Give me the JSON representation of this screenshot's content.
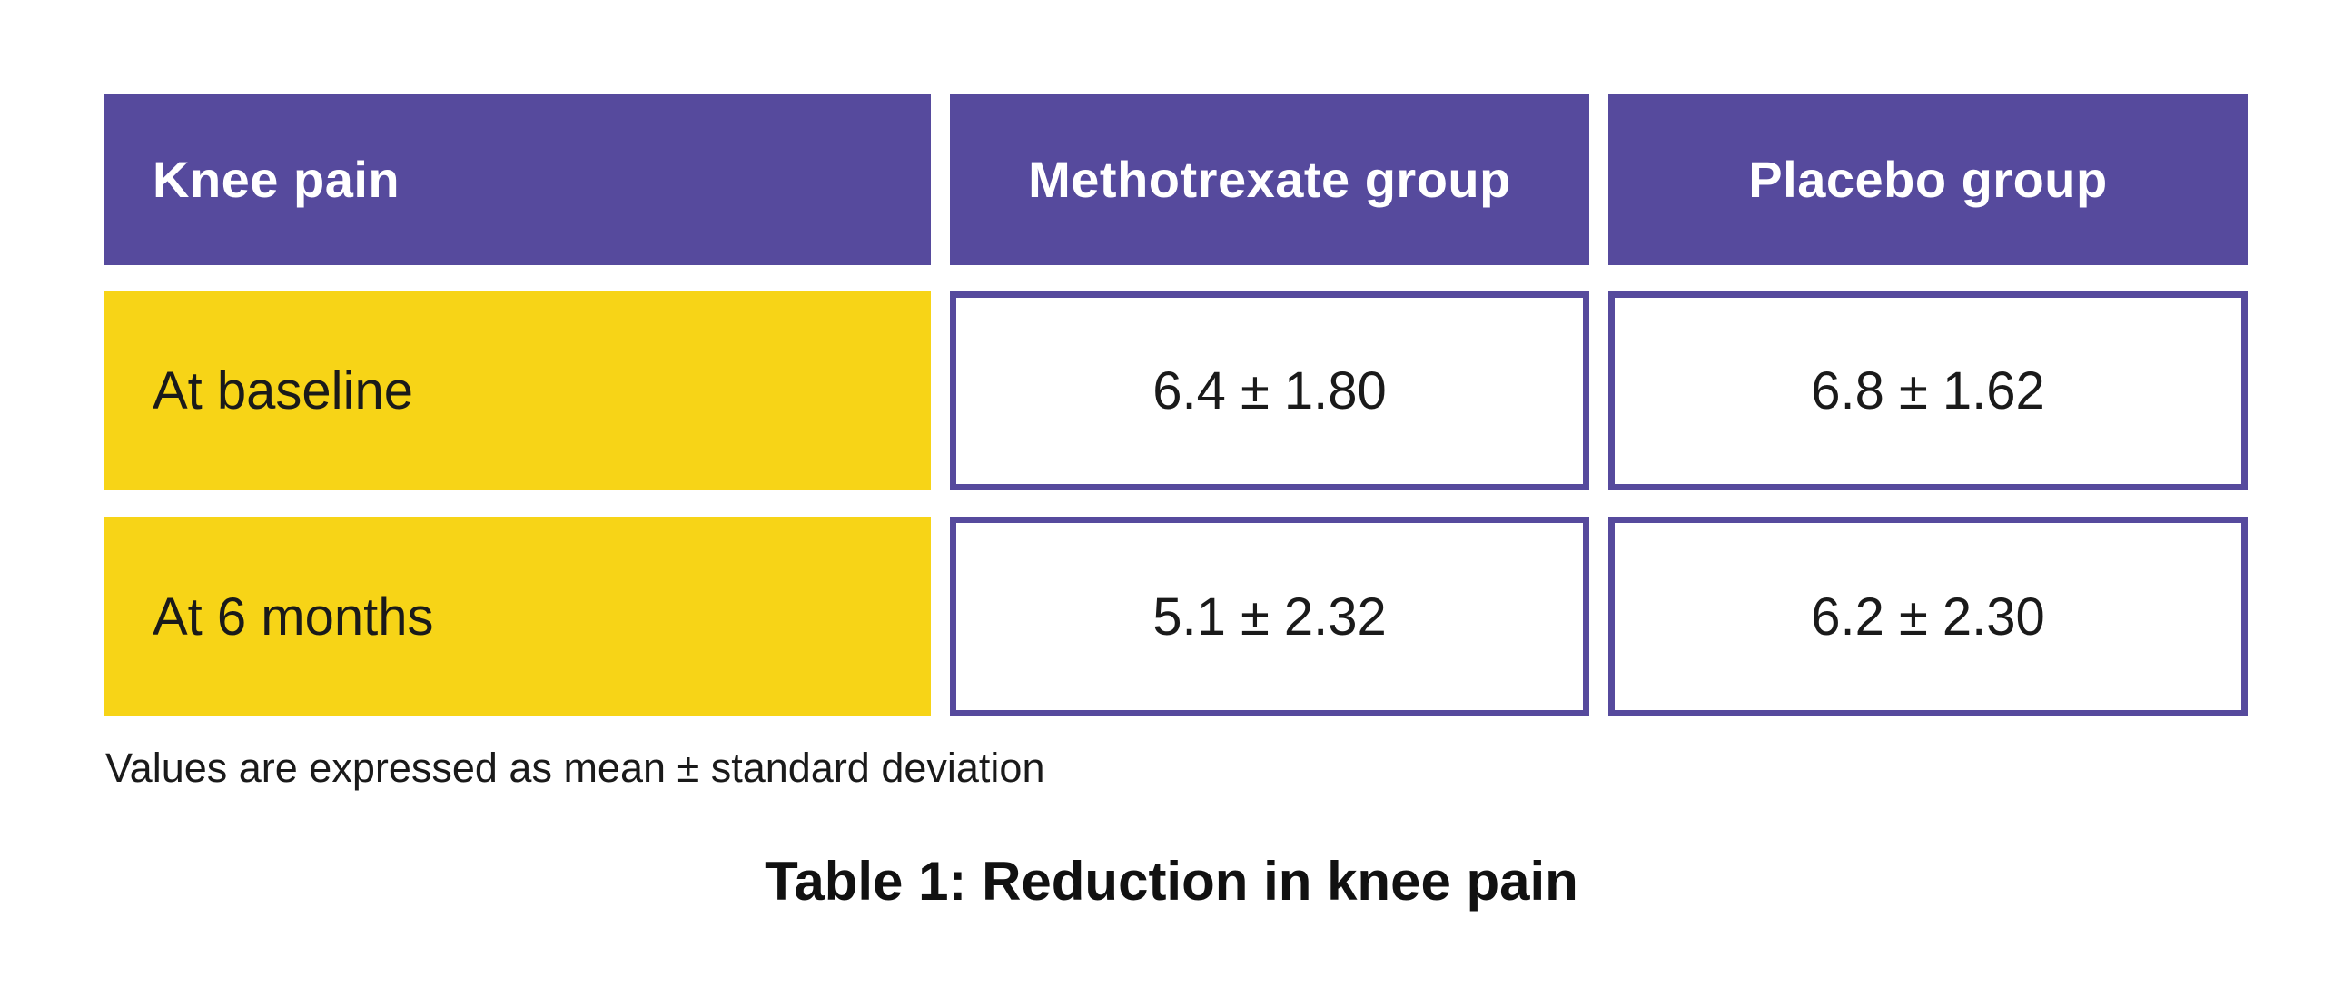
{
  "chart_data": {
    "type": "table",
    "title": "Table 1: Reduction in knee pain",
    "columns": [
      "Knee pain",
      "Methotrexate group",
      "Placebo group"
    ],
    "rows": [
      [
        "At baseline",
        "6.4 ± 1.80",
        "6.8 ± 1.62"
      ],
      [
        "At 6 months",
        "5.1 ± 2.32",
        "6.2 ± 2.30"
      ]
    ],
    "footnote": "Values are expressed as mean ± standard deviation"
  },
  "colors": {
    "header_bg": "#564a9d",
    "row_label_bg": "#f7d417",
    "cell_border": "#564a9d",
    "header_text": "#ffffff",
    "body_text": "#1a1a1a",
    "page_bg": "#ffffff"
  }
}
